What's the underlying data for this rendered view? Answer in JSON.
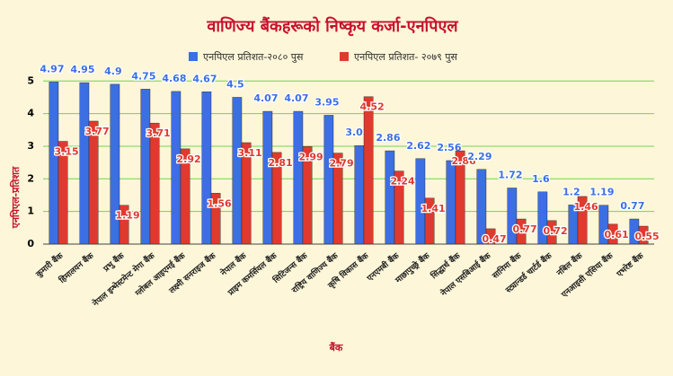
{
  "chart_data": {
    "type": "bar",
    "title": "वाणिज्य बैंकहरूको निष्कृय कर्जा-एनपिएल",
    "xlabel": "बैंक",
    "ylabel": "एनपिएल-प्रतिशत",
    "categories": [
      "कुमारी बैंक",
      "हिमालयन बैंक",
      "प्रभु बैंक",
      "नेपाल इन्भेस्टमेन्ट मेगा बैंक",
      "ग्लोबल आइएमई बैंक",
      "लक्ष्मी सनराइज बैंक",
      "नेपाल बैंक",
      "प्राइम कमर्सियल बैंक",
      "सिटिजन्स बैंक",
      "राष्ट्रिय वाणिज्य बैंक",
      "कृषि विकास बैंक",
      "एनएमबी बैंक",
      "माछापुच्छ्रे बैंक",
      "सिद्धार्थ बैंक",
      "नेपाल एसबिआई बैंक",
      "सानिमा बैंक",
      "स्ट्यान्डर्ड चार्टर्ड बैंक",
      "नबिल बैंक",
      "एनआइसी एसिया बैंक",
      "एभरेष्ट बैंक"
    ],
    "series": [
      {
        "name": "एनपिएल प्रतिशत-२०८० पुस",
        "color": "#3b6fe3",
        "label_color": "#3b6fe3",
        "values": [
          4.97,
          4.95,
          4.9,
          4.75,
          4.68,
          4.67,
          4.5,
          4.07,
          4.07,
          3.95,
          3.02,
          2.86,
          2.62,
          2.56,
          2.29,
          1.72,
          1.6,
          1.2,
          1.19,
          0.77
        ]
      },
      {
        "name": "एनपिएल प्रतिशत- २०७९ पुस",
        "color": "#e03a2e",
        "label_color": "#e03a2e",
        "values": [
          3.15,
          3.77,
          1.19,
          3.71,
          2.92,
          1.56,
          3.11,
          2.81,
          2.99,
          2.79,
          4.52,
          2.24,
          1.41,
          2.86,
          0.47,
          0.77,
          0.72,
          1.46,
          0.61,
          0.55
        ]
      }
    ],
    "ylim": [
      0,
      5.2
    ],
    "yticks": [
      0,
      1,
      2,
      3,
      4,
      5
    ],
    "grid": true,
    "grid_color": "#6fd64f",
    "legend": "top"
  }
}
